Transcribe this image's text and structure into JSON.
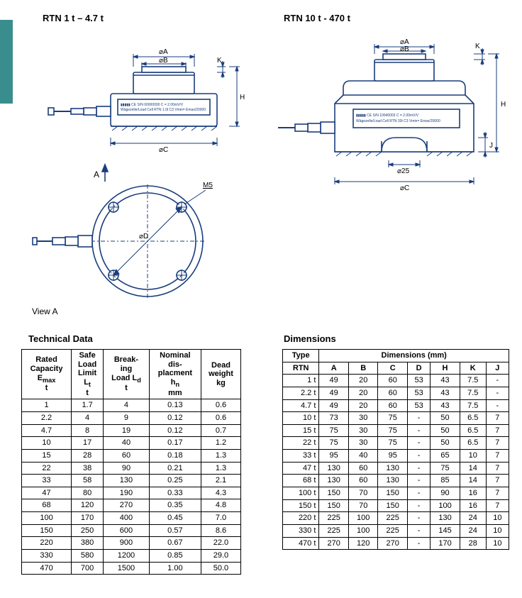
{
  "headings": {
    "left": "RTN 1 t – 4.7 t",
    "right": "RTN 10 t - 470 t"
  },
  "sections": {
    "tech": "Technical Data",
    "dim": "Dimensions"
  },
  "view_label": "View A",
  "dim_labels": {
    "a": "⌀A",
    "b": "⌀B",
    "c": "⌀C",
    "d": "⌀D",
    "h": "H",
    "k": "K",
    "j": "J",
    "m5": "M5",
    "d25": "⌀25",
    "arrow": "A"
  },
  "tech_table": {
    "headers": [
      "Rated\nCapacity\nEmax\nt",
      "Safe\nLoad\nLimit\nLt\nt",
      "Break-\ning\nLoad Ld\nt",
      "Nominal\ndis-\nplacment\nhn\nmm",
      "Dead\nweight\nkg"
    ],
    "rows": [
      [
        "1",
        "1.7",
        "4",
        "0.13",
        "0.6"
      ],
      [
        "2.2",
        "4",
        "9",
        "0.12",
        "0.6"
      ],
      [
        "4.7",
        "8",
        "19",
        "0.12",
        "0.7"
      ],
      [
        "10",
        "17",
        "40",
        "0.17",
        "1.2"
      ],
      [
        "15",
        "28",
        "60",
        "0.18",
        "1.3"
      ],
      [
        "22",
        "38",
        "90",
        "0.21",
        "1.3"
      ],
      [
        "33",
        "58",
        "130",
        "0.25",
        "2.1"
      ],
      [
        "47",
        "80",
        "190",
        "0.33",
        "4.3"
      ],
      [
        "68",
        "120",
        "270",
        "0.35",
        "4.8"
      ],
      [
        "100",
        "170",
        "400",
        "0.45",
        "7.0"
      ],
      [
        "150",
        "250",
        "600",
        "0.57",
        "8.6"
      ],
      [
        "220",
        "380",
        "900",
        "0.67",
        "22.0"
      ],
      [
        "330",
        "580",
        "1200",
        "0.85",
        "29.0"
      ],
      [
        "470",
        "700",
        "1500",
        "1.00",
        "50.0"
      ]
    ]
  },
  "dim_table": {
    "type_label": "Type",
    "group_label": "Dimensions (mm)",
    "sub_headers": [
      "RTN",
      "A",
      "B",
      "C",
      "D",
      "H",
      "K",
      "J"
    ],
    "rows": [
      [
        "1 t",
        "49",
        "20",
        "60",
        "53",
        "43",
        "7.5",
        "-"
      ],
      [
        "2.2 t",
        "49",
        "20",
        "60",
        "53",
        "43",
        "7.5",
        "-"
      ],
      [
        "4.7 t",
        "49",
        "20",
        "60",
        "53",
        "43",
        "7.5",
        "-"
      ],
      [
        "10 t",
        "73",
        "30",
        "75",
        "-",
        "50",
        "6.5",
        "7"
      ],
      [
        "15 t",
        "75",
        "30",
        "75",
        "-",
        "50",
        "6.5",
        "7"
      ],
      [
        "22 t",
        "75",
        "30",
        "75",
        "-",
        "50",
        "6.5",
        "7"
      ],
      [
        "33 t",
        "95",
        "40",
        "95",
        "-",
        "65",
        "10",
        "7"
      ],
      [
        "47 t",
        "130",
        "60",
        "130",
        "-",
        "75",
        "14",
        "7"
      ],
      [
        "68 t",
        "130",
        "60",
        "130",
        "-",
        "85",
        "14",
        "7"
      ],
      [
        "100 t",
        "150",
        "70",
        "150",
        "-",
        "90",
        "16",
        "7"
      ],
      [
        "150 t",
        "150",
        "70",
        "150",
        "-",
        "100",
        "16",
        "7"
      ],
      [
        "220 t",
        "225",
        "100",
        "225",
        "-",
        "130",
        "24",
        "10"
      ],
      [
        "330 t",
        "225",
        "100",
        "225",
        "-",
        "145",
        "24",
        "10"
      ],
      [
        "470 t",
        "270",
        "120",
        "270",
        "-",
        "170",
        "28",
        "10"
      ]
    ]
  },
  "colors": {
    "line": "#1a3d7c",
    "fill": "#ffffff",
    "hatch": "#1a3d7c"
  }
}
